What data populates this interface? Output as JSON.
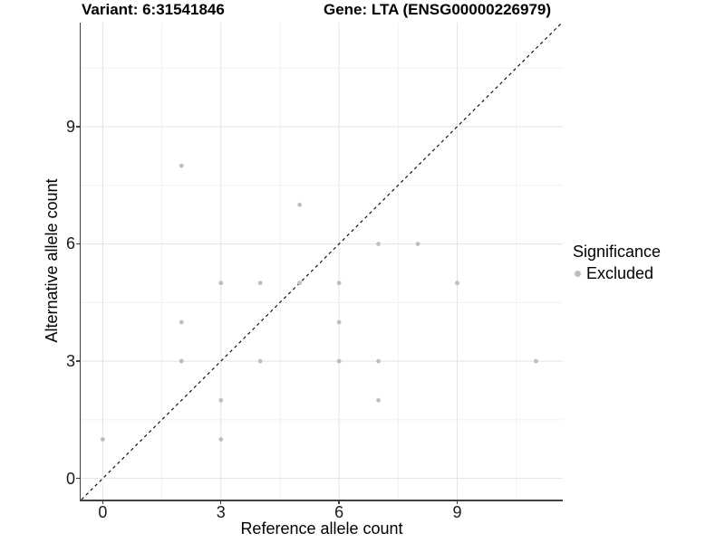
{
  "title": {
    "variant": "Variant: 6:31541846",
    "gene": "Gene: LTA (ENSG00000226979)"
  },
  "chart_data": {
    "type": "scatter",
    "xlabel": "Reference allele count",
    "ylabel": "Alternative allele count",
    "xlim": [
      -0.56,
      11.68
    ],
    "ylim": [
      -0.54,
      11.66
    ],
    "x_ticks": [
      0,
      3,
      6,
      9
    ],
    "y_ticks": [
      0,
      3,
      6,
      9
    ],
    "x_minor_ticks": [
      1.5,
      4.5,
      7.5,
      10.5
    ],
    "y_minor_ticks": [
      1.5,
      4.5,
      7.5,
      10.5
    ],
    "grid": "major and minor, light gray on white",
    "identity_line": {
      "equation": "y = x",
      "style": "dashed",
      "color": "#000000"
    },
    "series": [
      {
        "name": "Excluded",
        "color": "#bebebe",
        "points": [
          [
            0,
            1
          ],
          [
            2,
            3
          ],
          [
            2,
            4
          ],
          [
            2,
            8
          ],
          [
            3,
            1
          ],
          [
            3,
            2
          ],
          [
            3,
            5
          ],
          [
            4,
            3
          ],
          [
            4,
            5
          ],
          [
            5,
            5
          ],
          [
            5,
            7
          ],
          [
            6,
            3
          ],
          [
            6,
            4
          ],
          [
            6,
            5
          ],
          [
            7,
            2
          ],
          [
            7,
            3
          ],
          [
            7,
            6
          ],
          [
            8,
            6
          ],
          [
            9,
            5
          ],
          [
            11,
            3
          ]
        ]
      }
    ],
    "legend": {
      "title": "Significance",
      "position": "right",
      "items": [
        {
          "label": "Excluded",
          "color": "#bebebe"
        }
      ]
    },
    "colors": {
      "grid_major": "#e4e4e4",
      "grid_minor": "#f1f1f1",
      "axis_line": "#404040",
      "tick_text": "#1a1a1a",
      "point": "#bebebe"
    }
  }
}
